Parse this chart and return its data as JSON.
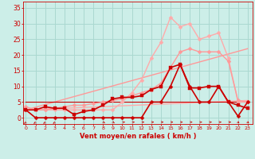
{
  "background_color": "#cceee8",
  "grid_color": "#aad8d0",
  "xlabel": "Vent moyen/en rafales ( km/h )",
  "ylabel_ticks": [
    0,
    5,
    10,
    15,
    20,
    25,
    30,
    35
  ],
  "xticks": [
    0,
    1,
    2,
    3,
    4,
    5,
    6,
    7,
    8,
    9,
    10,
    11,
    12,
    13,
    14,
    15,
    16,
    17,
    18,
    19,
    20,
    21,
    22,
    23
  ],
  "xlim": [
    -0.3,
    23.5
  ],
  "ylim": [
    -2,
    37
  ],
  "line_horiz": {
    "x": [
      0,
      23
    ],
    "y": [
      5,
      5
    ],
    "color": "#cc0000",
    "lw": 0.8,
    "marker": null
  },
  "line_straight1": {
    "x": [
      0,
      23
    ],
    "y": [
      2.5,
      22
    ],
    "color": "#ff9999",
    "lw": 1.0,
    "marker": null
  },
  "line_straight2": {
    "x": [
      0,
      23
    ],
    "y": [
      2.5,
      5.5
    ],
    "color": "#ffaaaa",
    "lw": 1.0,
    "marker": null
  },
  "line_pink_triangle": {
    "x": [
      0,
      1,
      2,
      3,
      4,
      5,
      6,
      7,
      8,
      9,
      10,
      11,
      12,
      13,
      14,
      15,
      16,
      17,
      18,
      19,
      20,
      21,
      22,
      23
    ],
    "y": [
      2.5,
      2.5,
      2.5,
      2.5,
      2.5,
      2.5,
      2.5,
      2.5,
      2.5,
      2.5,
      5,
      8,
      12,
      19,
      24,
      32,
      29,
      30,
      25,
      26,
      27,
      19,
      5,
      5
    ],
    "color": "#ffaaaa",
    "lw": 1.0,
    "marker": "D",
    "ms": 2.5
  },
  "line_pink_medium": {
    "x": [
      0,
      1,
      2,
      3,
      4,
      5,
      6,
      7,
      8,
      9,
      10,
      11,
      12,
      13,
      14,
      15,
      16,
      17,
      18,
      19,
      20,
      21,
      22,
      23
    ],
    "y": [
      3.5,
      2.5,
      2.5,
      3,
      3.5,
      4,
      4,
      4.5,
      5,
      5.5,
      6,
      7,
      8,
      9,
      11,
      16,
      21,
      22,
      21,
      21,
      21,
      18,
      5.5,
      5
    ],
    "color": "#ff9999",
    "lw": 1.0,
    "marker": "D",
    "ms": 2.5
  },
  "line_dark_square": {
    "x": [
      0,
      1,
      2,
      3,
      4,
      5,
      6,
      7,
      8,
      9,
      10,
      11,
      12,
      13,
      14,
      15,
      16,
      17,
      18,
      19,
      20,
      21,
      22,
      23
    ],
    "y": [
      2.5,
      2.5,
      3.5,
      3,
      3,
      1,
      2,
      2.5,
      4,
      6,
      6.5,
      6.5,
      7,
      9,
      10,
      16,
      17,
      9.5,
      9.5,
      10,
      10,
      5,
      4,
      3
    ],
    "color": "#cc0000",
    "lw": 1.2,
    "marker": "s",
    "ms": 2.5
  },
  "line_dark_flat": {
    "x": [
      0,
      1,
      2,
      3,
      4,
      5,
      6,
      7,
      8,
      9,
      10,
      11,
      12,
      13,
      14,
      15,
      16,
      17,
      18,
      19,
      20,
      21,
      22,
      23
    ],
    "y": [
      2.5,
      0,
      0,
      0,
      0,
      0,
      0,
      0,
      0,
      0,
      0,
      0,
      0,
      5,
      5,
      10,
      17,
      10,
      5,
      5,
      10,
      5,
      0.5,
      5
    ],
    "color": "#cc0000",
    "lw": 1.2,
    "marker": "D",
    "ms": 2.5
  },
  "xlabel_color": "#cc0000",
  "tick_color": "#cc0000"
}
